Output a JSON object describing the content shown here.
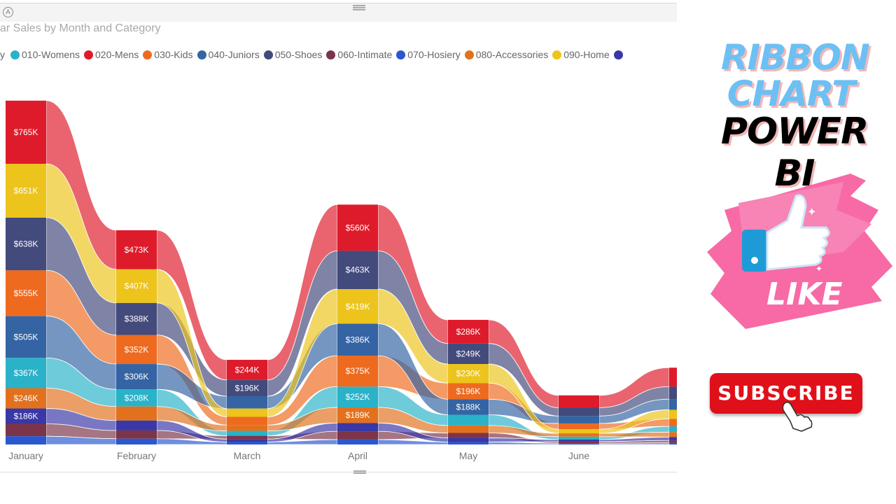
{
  "visual_header": {
    "focus_icon": "focus-mode-icon",
    "drag_icon": "drag-handle-icon"
  },
  "chart_data": {
    "type": "ribbon",
    "title": "ar Sales by Month and Category",
    "legend_prefix": "y",
    "legend_placement": "top-left",
    "series": [
      {
        "name": "010-Womens",
        "color": "#2AB2C9",
        "values": [
          367,
          208,
          60,
          252,
          130,
          35,
          70
        ]
      },
      {
        "name": "020-Mens",
        "color": "#DE1B2B",
        "values": [
          765,
          473,
          244,
          560,
          286,
          150,
          230
        ]
      },
      {
        "name": "030-Kids",
        "color": "#EE6A1F",
        "values": [
          555,
          352,
          100,
          375,
          196,
          70,
          90
        ]
      },
      {
        "name": "040-Juniors",
        "color": "#3464A3",
        "values": [
          505,
          306,
          150,
          386,
          188,
          90,
          130
        ]
      },
      {
        "name": "050-Shoes",
        "color": "#434A7C",
        "values": [
          638,
          388,
          196,
          463,
          249,
          100,
          150
        ]
      },
      {
        "name": "060-Intimate",
        "color": "#7B3448",
        "values": [
          150,
          100,
          40,
          100,
          60,
          20,
          30
        ]
      },
      {
        "name": "070-Hosiery",
        "color": "#2A58CF",
        "values": [
          100,
          70,
          30,
          60,
          30,
          15,
          20
        ]
      },
      {
        "name": "080-Accessories",
        "color": "#E2711E",
        "values": [
          246,
          170,
          70,
          189,
          90,
          40,
          60
        ]
      },
      {
        "name": "090-Home",
        "color": "#ECC41C",
        "values": [
          651,
          407,
          100,
          419,
          230,
          50,
          110
        ]
      },
      {
        "name": "",
        "color": "#3A37A6",
        "values": [
          186,
          120,
          35,
          100,
          50,
          25,
          40
        ]
      }
    ],
    "categories": [
      "January",
      "February",
      "March",
      "April",
      "May",
      "June",
      ""
    ],
    "value_format": "$%K",
    "grid": false,
    "yaxis_visible": false
  },
  "sidebar_promo": {
    "line1": "RIBBON",
    "line2": "CHART",
    "line3": "POWER BI",
    "like_label": "LIKE",
    "like_icon": "thumbs-up-icon",
    "subscribe_label": "SUBSCRIBE",
    "cursor_icon": "hand-pointer-icon",
    "colors": {
      "title_blue": "#6CC0F4",
      "like_pink": "#F65A9C",
      "subscribe_red": "#E0101A"
    }
  }
}
